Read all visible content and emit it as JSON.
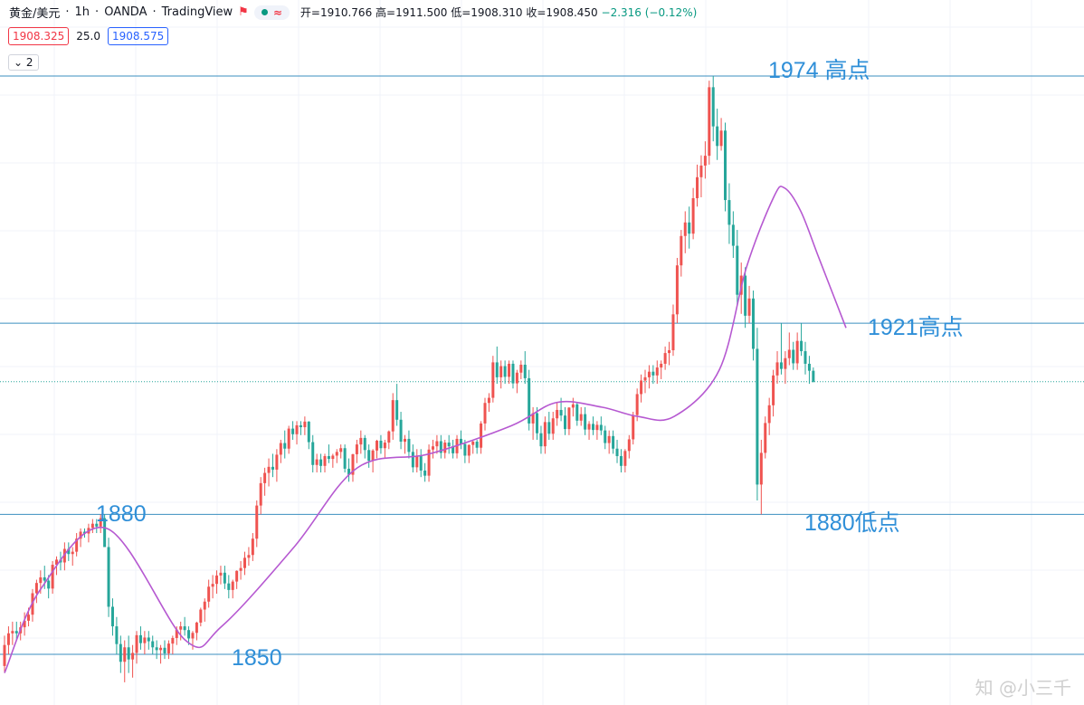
{
  "header": {
    "symbol": "黄金/美元",
    "interval": "1h",
    "broker": "OANDA",
    "platform": "TradingView",
    "open_label": "开=1910.766",
    "high_label": "高=1911.500",
    "low_label": "低=1908.310",
    "close_label": "收=1908.450",
    "change_label": "−2.316 (−0.12%)",
    "bid": "1908.325",
    "spread": "25.0",
    "ask": "1908.575",
    "indicator_count": "2"
  },
  "annotations": {
    "high_1974": "1974 高点",
    "high_1921": "1921高点",
    "low_1880": "1880低点",
    "level_1880": "1880",
    "level_1850": "1850"
  },
  "watermark": "知 @小三千",
  "colors": {
    "up": "#ef5350",
    "down": "#26a69a",
    "ma": "#b659d1",
    "level_line": "#3b8fbf",
    "annotation": "#2f8fd8"
  },
  "chart_data": {
    "type": "candlestick",
    "title": "黄金/美元 · 1h · OANDA",
    "ylim": [
      1843,
      1975
    ],
    "levels": [
      1974,
      1921,
      1880,
      1850
    ],
    "current_price": 1908.45,
    "moving_average_anchors": [
      [
        0,
        1846
      ],
      [
        40,
        1864
      ],
      [
        113,
        1877
      ],
      [
        200,
        1853
      ],
      [
        240,
        1856
      ],
      [
        320,
        1873
      ],
      [
        390,
        1890
      ],
      [
        470,
        1893
      ],
      [
        560,
        1899
      ],
      [
        610,
        1904
      ],
      [
        660,
        1903
      ],
      [
        700,
        1901
      ],
      [
        740,
        1901
      ],
      [
        790,
        1911
      ],
      [
        820,
        1933
      ],
      [
        850,
        1948
      ],
      [
        862,
        1950
      ],
      [
        880,
        1945
      ],
      [
        900,
        1935
      ],
      [
        930,
        1920
      ]
    ],
    "candles_ohlc": [
      [
        1847.5,
        1854,
        1846,
        1852.0
      ],
      [
        1852.0,
        1856,
        1850,
        1854.5
      ],
      [
        1854.5,
        1857,
        1852,
        1855.0
      ],
      [
        1855.0,
        1857,
        1853,
        1854.5
      ],
      [
        1854.5,
        1857,
        1853,
        1855.8
      ],
      [
        1855.8,
        1859,
        1854,
        1857.2
      ],
      [
        1857.2,
        1860,
        1856,
        1858.5
      ],
      [
        1858.5,
        1864,
        1857,
        1863.1
      ],
      [
        1863.1,
        1866,
        1861,
        1865.3
      ],
      [
        1865.3,
        1868,
        1863,
        1866.5
      ],
      [
        1866.5,
        1869,
        1864,
        1865.8
      ],
      [
        1865.8,
        1867,
        1862,
        1864.1
      ],
      [
        1864.1,
        1870,
        1863,
        1869.2
      ],
      [
        1869.2,
        1871,
        1867,
        1870.3
      ],
      [
        1870.3,
        1872,
        1868,
        1869.7
      ],
      [
        1869.7,
        1874,
        1868,
        1872.6
      ],
      [
        1872.6,
        1874,
        1870,
        1871.5
      ],
      [
        1871.5,
        1873,
        1869,
        1872.0
      ],
      [
        1872.0,
        1876,
        1871,
        1874.8
      ],
      [
        1874.8,
        1877,
        1873,
        1876.3
      ],
      [
        1876.3,
        1877,
        1875,
        1875.9
      ],
      [
        1875.9,
        1878,
        1874,
        1877.1
      ],
      [
        1877.1,
        1879,
        1876,
        1878.0
      ],
      [
        1878.0,
        1879,
        1876,
        1877.4
      ],
      [
        1877.4,
        1880,
        1876,
        1879.2
      ],
      [
        1879.2,
        1880,
        1877,
        1873.0
      ],
      [
        1873.0,
        1875,
        1858,
        1860.2
      ],
      [
        1860.2,
        1862,
        1854,
        1856.0
      ],
      [
        1856.0,
        1858,
        1850,
        1852.2
      ],
      [
        1852.2,
        1854,
        1846,
        1848.4
      ],
      [
        1848.4,
        1853,
        1844,
        1851.5
      ],
      [
        1851.5,
        1854,
        1846,
        1848.9
      ],
      [
        1848.9,
        1852,
        1845,
        1850.3
      ],
      [
        1850.3,
        1855,
        1848,
        1854.1
      ],
      [
        1854.1,
        1856,
        1851,
        1852.4
      ],
      [
        1852.4,
        1855,
        1850,
        1853.6
      ],
      [
        1853.6,
        1855,
        1851,
        1852.8
      ],
      [
        1852.8,
        1854,
        1850,
        1851.5
      ],
      [
        1851.5,
        1853,
        1849,
        1850.9
      ],
      [
        1850.9,
        1852,
        1848,
        1851.4
      ],
      [
        1851.4,
        1853,
        1849,
        1850.2
      ],
      [
        1850.2,
        1853,
        1849,
        1852.3
      ],
      [
        1852.3,
        1854,
        1850,
        1853.5
      ],
      [
        1853.5,
        1856,
        1852,
        1855.3
      ],
      [
        1855.3,
        1857,
        1853,
        1856.0
      ],
      [
        1856.0,
        1858,
        1854,
        1855.2
      ],
      [
        1855.2,
        1856,
        1852,
        1853.4
      ],
      [
        1853.4,
        1855,
        1851,
        1854.6
      ],
      [
        1854.6,
        1857,
        1853,
        1856.8
      ],
      [
        1856.8,
        1860,
        1856,
        1859.6
      ],
      [
        1859.6,
        1862,
        1857,
        1861.3
      ],
      [
        1861.3,
        1866,
        1860,
        1864.5
      ],
      [
        1864.5,
        1867,
        1862,
        1865.1
      ],
      [
        1865.1,
        1868,
        1863,
        1866.9
      ],
      [
        1866.9,
        1869,
        1865,
        1867.5
      ],
      [
        1867.5,
        1869,
        1864,
        1865.2
      ],
      [
        1865.2,
        1867,
        1862,
        1863.8
      ],
      [
        1863.8,
        1866,
        1862,
        1865.6
      ],
      [
        1865.6,
        1868,
        1864,
        1867.9
      ],
      [
        1867.9,
        1870,
        1866,
        1868.5
      ],
      [
        1868.5,
        1872,
        1867,
        1870.7
      ],
      [
        1870.7,
        1873,
        1869,
        1871.3
      ],
      [
        1871.3,
        1876,
        1870,
        1874.8
      ],
      [
        1874.8,
        1883,
        1873,
        1881.9
      ],
      [
        1881.9,
        1888,
        1880,
        1886.7
      ],
      [
        1886.7,
        1890,
        1884,
        1888.9
      ],
      [
        1888.9,
        1892,
        1886,
        1890.2
      ],
      [
        1890.2,
        1893,
        1888,
        1889.6
      ],
      [
        1889.6,
        1894,
        1887,
        1892.8
      ],
      [
        1892.8,
        1896,
        1891,
        1895.3
      ],
      [
        1895.3,
        1898,
        1892,
        1894.1
      ],
      [
        1894.1,
        1899,
        1893,
        1898.4
      ],
      [
        1898.4,
        1900,
        1896,
        1897.2
      ],
      [
        1897.2,
        1900,
        1895,
        1899.1
      ],
      [
        1899.1,
        1900,
        1897,
        1898.7
      ],
      [
        1898.7,
        1901,
        1897,
        1899.9
      ],
      [
        1899.9,
        1900,
        1894,
        1895.5
      ],
      [
        1895.5,
        1897,
        1889,
        1890.6
      ],
      [
        1890.6,
        1893,
        1889,
        1891.8
      ],
      [
        1891.8,
        1893,
        1889,
        1890.4
      ],
      [
        1890.4,
        1893,
        1889,
        1892.5
      ],
      [
        1892.5,
        1895,
        1891,
        1891.9
      ],
      [
        1891.9,
        1893,
        1890,
        1892.6
      ],
      [
        1892.6,
        1894,
        1891,
        1893.4
      ],
      [
        1893.4,
        1895,
        1892,
        1894.2
      ],
      [
        1894.2,
        1895,
        1889,
        1889.8
      ],
      [
        1889.8,
        1892,
        1887,
        1888.5
      ],
      [
        1888.5,
        1893,
        1887,
        1892.9
      ],
      [
        1892.9,
        1896,
        1891,
        1895.0
      ],
      [
        1895.0,
        1898,
        1893,
        1896.4
      ],
      [
        1896.4,
        1897,
        1892,
        1893.8
      ],
      [
        1893.8,
        1895,
        1890,
        1891.5
      ],
      [
        1891.5,
        1894,
        1889,
        1893.7
      ],
      [
        1893.7,
        1896,
        1892,
        1895.8
      ],
      [
        1895.8,
        1897,
        1893,
        1894.2
      ],
      [
        1894.2,
        1896,
        1892,
        1895.4
      ],
      [
        1895.4,
        1898,
        1894,
        1897.8
      ],
      [
        1897.8,
        1906,
        1896,
        1904.5
      ],
      [
        1904.5,
        1908,
        1899,
        1900.3
      ],
      [
        1900.3,
        1902,
        1894,
        1895.6
      ],
      [
        1895.6,
        1897,
        1893,
        1896.2
      ],
      [
        1896.2,
        1898,
        1892,
        1893.4
      ],
      [
        1893.4,
        1895,
        1889,
        1890.1
      ],
      [
        1890.1,
        1894,
        1889,
        1892.6
      ],
      [
        1892.6,
        1894,
        1888,
        1889.4
      ],
      [
        1889.4,
        1891,
        1887,
        1888.3
      ],
      [
        1888.3,
        1895,
        1887,
        1893.9
      ],
      [
        1893.9,
        1896,
        1892,
        1894.6
      ],
      [
        1894.6,
        1897,
        1893,
        1895.7
      ],
      [
        1895.7,
        1897,
        1892,
        1893.2
      ],
      [
        1893.2,
        1896,
        1892,
        1895.4
      ],
      [
        1895.4,
        1897,
        1893,
        1894.6
      ],
      [
        1894.6,
        1896,
        1892,
        1893.1
      ],
      [
        1893.1,
        1897,
        1892,
        1896.2
      ],
      [
        1896.2,
        1898,
        1894,
        1895.1
      ],
      [
        1895.1,
        1896,
        1891,
        1892.6
      ],
      [
        1892.6,
        1895,
        1891,
        1894.9
      ],
      [
        1894.9,
        1896,
        1893,
        1895.6
      ],
      [
        1895.6,
        1896,
        1893,
        1894.3
      ],
      [
        1894.3,
        1900,
        1893,
        1899.5
      ],
      [
        1899.5,
        1905,
        1898,
        1903.9
      ],
      [
        1903.9,
        1906,
        1902,
        1905.0
      ],
      [
        1905.0,
        1914,
        1904,
        1912.6
      ],
      [
        1912.6,
        1916,
        1908,
        1909.4
      ],
      [
        1909.4,
        1913,
        1907,
        1911.8
      ],
      [
        1911.8,
        1913,
        1908,
        1909.5
      ],
      [
        1909.5,
        1913,
        1908,
        1912.3
      ],
      [
        1912.3,
        1913,
        1907,
        1908.1
      ],
      [
        1908.1,
        1911,
        1906,
        1910.4
      ],
      [
        1910.4,
        1913,
        1909,
        1912.1
      ],
      [
        1912.1,
        1915,
        1908,
        1909.2
      ],
      [
        1909.2,
        1911,
        1898,
        1899.5
      ],
      [
        1899.5,
        1903,
        1896,
        1901.7
      ],
      [
        1901.7,
        1903,
        1896,
        1897.4
      ],
      [
        1897.4,
        1899,
        1893,
        1894.6
      ],
      [
        1894.6,
        1901,
        1893,
        1899.8
      ],
      [
        1899.8,
        1902,
        1896,
        1897.3
      ],
      [
        1897.3,
        1902,
        1896,
        1900.6
      ],
      [
        1900.6,
        1904,
        1899,
        1902.4
      ],
      [
        1902.4,
        1905,
        1900,
        1901.2
      ],
      [
        1901.2,
        1903,
        1897,
        1898.3
      ],
      [
        1898.3,
        1903,
        1897,
        1902.9
      ],
      [
        1902.9,
        1905,
        1901,
        1903.6
      ],
      [
        1903.6,
        1904,
        1899,
        1900.1
      ],
      [
        1900.1,
        1903,
        1899,
        1901.5
      ],
      [
        1901.5,
        1903,
        1897,
        1898.2
      ],
      [
        1898.2,
        1900,
        1896,
        1899.4
      ],
      [
        1899.4,
        1901,
        1897,
        1898.1
      ],
      [
        1898.1,
        1900,
        1896,
        1899.2
      ],
      [
        1899.2,
        1901,
        1897,
        1898.0
      ],
      [
        1898.0,
        1899,
        1894,
        1895.3
      ],
      [
        1895.3,
        1898,
        1893,
        1896.8
      ],
      [
        1896.8,
        1898,
        1893,
        1894.1
      ],
      [
        1894.1,
        1896,
        1891,
        1892.5
      ],
      [
        1892.5,
        1894,
        1889,
        1890.4
      ],
      [
        1890.4,
        1894,
        1889,
        1893.6
      ],
      [
        1893.6,
        1897,
        1892,
        1896.1
      ],
      [
        1896.1,
        1902,
        1895,
        1901.3
      ],
      [
        1901.3,
        1907,
        1900,
        1905.8
      ],
      [
        1905.8,
        1910,
        1904,
        1908.7
      ],
      [
        1908.7,
        1911,
        1906,
        1909.4
      ],
      [
        1909.4,
        1912,
        1907,
        1910.6
      ],
      [
        1910.6,
        1912,
        1908,
        1909.8
      ],
      [
        1909.8,
        1913,
        1908,
        1911.5
      ],
      [
        1911.5,
        1913,
        1909,
        1912.3
      ],
      [
        1912.3,
        1916,
        1911,
        1914.6
      ],
      [
        1914.6,
        1917,
        1912,
        1915.2
      ],
      [
        1915.2,
        1925,
        1914,
        1922.9
      ],
      [
        1922.9,
        1935,
        1921,
        1933.4
      ],
      [
        1933.4,
        1941,
        1931,
        1939.7
      ],
      [
        1939.7,
        1945,
        1936,
        1942.6
      ],
      [
        1942.6,
        1946,
        1937,
        1940.2
      ],
      [
        1940.2,
        1950,
        1939,
        1947.8
      ],
      [
        1947.8,
        1955,
        1946,
        1952.3
      ],
      [
        1952.3,
        1957,
        1948,
        1954.8
      ],
      [
        1954.8,
        1960,
        1952,
        1956.9
      ],
      [
        1956.9,
        1973,
        1955,
        1971.6
      ],
      [
        1971.6,
        1974,
        1960,
        1963.2
      ],
      [
        1963.2,
        1967,
        1956,
        1959.0
      ],
      [
        1959.0,
        1965,
        1958,
        1962.3
      ],
      [
        1962.3,
        1964,
        1945,
        1947.4
      ],
      [
        1947.4,
        1951,
        1938,
        1942.1
      ],
      [
        1942.1,
        1945,
        1935,
        1937.6
      ],
      [
        1937.6,
        1941,
        1925,
        1927.1
      ],
      [
        1927.1,
        1934,
        1923,
        1931.2
      ],
      [
        1931.2,
        1933,
        1920,
        1922.6
      ],
      [
        1922.6,
        1929,
        1921,
        1926.3
      ],
      [
        1926.3,
        1928,
        1913,
        1915.5
      ],
      [
        1915.5,
        1920,
        1883,
        1886.4
      ],
      [
        1886.4,
        1896,
        1880,
        1893.2
      ],
      [
        1893.2,
        1901,
        1892,
        1899.6
      ],
      [
        1899.6,
        1905,
        1897,
        1903.4
      ],
      [
        1903.4,
        1911,
        1901,
        1909.8
      ],
      [
        1909.8,
        1915,
        1908,
        1912.6
      ],
      [
        1912.6,
        1921,
        1910,
        1911.2
      ],
      [
        1911.2,
        1915,
        1908,
        1913.5
      ],
      [
        1913.5,
        1919,
        1912,
        1915.3
      ],
      [
        1915.3,
        1917,
        1911,
        1912.4
      ],
      [
        1912.4,
        1919,
        1911,
        1917.2
      ],
      [
        1917.2,
        1921,
        1914,
        1915.0
      ],
      [
        1915.0,
        1917,
        1910,
        1912.3
      ],
      [
        1912.3,
        1914,
        1908,
        1910.8
      ],
      [
        1910.8,
        1911.5,
        1908.3,
        1908.45
      ]
    ]
  }
}
